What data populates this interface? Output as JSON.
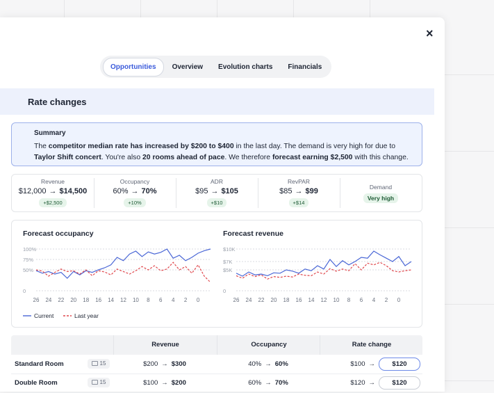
{
  "close": "×",
  "arrow": "→",
  "tabs": [
    {
      "label": "Opportunities",
      "active": true
    },
    {
      "label": "Overview",
      "active": false
    },
    {
      "label": "Evolution charts",
      "active": false
    },
    {
      "label": "Financials",
      "active": false
    }
  ],
  "section": {
    "title": "Rate changes"
  },
  "summary": {
    "title": "Summary",
    "segments": [
      {
        "text": "The ",
        "bold": false
      },
      {
        "text": "competitor median rate has increased by $200 to $400",
        "bold": true
      },
      {
        "text": " in the last day. The demand is very high for due to ",
        "bold": false
      },
      {
        "text": "Taylor Shift concert",
        "bold": true
      },
      {
        "text": ". You're also ",
        "bold": false
      },
      {
        "text": "20 rooms ahead of pace",
        "bold": true
      },
      {
        "text": ". We therefore ",
        "bold": false
      },
      {
        "text": "forecast earning $2,500",
        "bold": true
      },
      {
        "text": " with this change.",
        "bold": false
      }
    ]
  },
  "metrics": [
    {
      "label": "Revenue",
      "from": "$12,000",
      "to": "$14,500",
      "delta": "+$2,500"
    },
    {
      "label": "Occupancy",
      "from": "60%",
      "to": "70%",
      "delta": "+10%"
    },
    {
      "label": "ADR",
      "from": "$95",
      "to": "$105",
      "delta": "+$10"
    },
    {
      "label": "RevPAR",
      "from": "$85",
      "to": "$99",
      "delta": "+$14"
    }
  ],
  "demand": {
    "label": "Demand",
    "value": "Very high"
  },
  "charts": [
    {
      "type": "line",
      "title": "Forecast occupancy",
      "x": [
        26,
        25,
        24,
        23,
        22,
        21,
        20,
        19,
        18,
        17,
        16,
        15,
        14,
        13,
        12,
        11,
        10,
        9,
        8,
        7,
        6,
        5,
        4,
        3,
        2,
        1,
        0,
        -1,
        -2
      ],
      "xlim": [
        26,
        -2
      ],
      "xticks": [
        26,
        24,
        22,
        20,
        18,
        16,
        14,
        12,
        10,
        8,
        6,
        4,
        2,
        0
      ],
      "ylim": [
        0,
        100
      ],
      "yticks": [
        {
          "value": 0,
          "label": "0"
        },
        {
          "value": 50,
          "label": "50%"
        },
        {
          "value": 75,
          "label": "75%"
        },
        {
          "value": 100,
          "label": "100%"
        }
      ],
      "grid": true,
      "series": [
        {
          "name": "Current",
          "color": "#4a67d6",
          "dashed": false,
          "values": [
            48,
            42,
            46,
            40,
            44,
            30,
            46,
            38,
            48,
            44,
            50,
            55,
            62,
            80,
            72,
            88,
            95,
            82,
            93,
            88,
            92,
            100,
            78,
            85,
            72,
            80,
            90,
            96,
            100
          ]
        },
        {
          "name": "Last year",
          "color": "#e0474c",
          "dashed": true,
          "values": [
            50,
            47,
            35,
            44,
            52,
            46,
            48,
            40,
            50,
            36,
            48,
            45,
            38,
            52,
            46,
            40,
            48,
            58,
            50,
            60,
            48,
            52,
            68,
            50,
            58,
            42,
            62,
            35,
            20
          ]
        }
      ]
    },
    {
      "type": "line",
      "title": "Forecast revenue",
      "x": [
        26,
        25,
        24,
        23,
        22,
        21,
        20,
        19,
        18,
        17,
        16,
        15,
        14,
        13,
        12,
        11,
        10,
        9,
        8,
        7,
        6,
        5,
        4,
        3,
        2,
        1,
        0,
        -1,
        -2
      ],
      "xlim": [
        26,
        -2
      ],
      "xticks": [
        26,
        24,
        22,
        20,
        18,
        16,
        14,
        12,
        10,
        8,
        6,
        4,
        2,
        0
      ],
      "ylim": [
        0,
        10000
      ],
      "yticks": [
        {
          "value": 0,
          "label": "0"
        },
        {
          "value": 5000,
          "label": "$5K"
        },
        {
          "value": 7000,
          "label": "$7K"
        },
        {
          "value": 10000,
          "label": "$10K"
        }
      ],
      "grid": true,
      "series": [
        {
          "name": "Current",
          "color": "#4a67d6",
          "dashed": false,
          "values": [
            4200,
            3500,
            4500,
            3800,
            4000,
            3600,
            4300,
            4200,
            5000,
            4700,
            4200,
            5200,
            4800,
            6000,
            5200,
            7500,
            5800,
            7200,
            6200,
            7000,
            8000,
            7800,
            9500,
            8600,
            7800,
            7000,
            8200,
            6000,
            7000
          ]
        },
        {
          "name": "Last year",
          "color": "#e0474c",
          "dashed": true,
          "values": [
            3600,
            3000,
            4000,
            3400,
            3800,
            2800,
            3400,
            3200,
            3500,
            3300,
            4000,
            3700,
            3600,
            4500,
            4000,
            5300,
            4700,
            5200,
            4800,
            6500,
            5000,
            6600,
            6200,
            6800,
            6000,
            4800,
            4500,
            4800,
            5000
          ]
        }
      ]
    }
  ],
  "table": {
    "headers": [
      "Revenue",
      "Occupancy",
      "Rate change"
    ],
    "rows": [
      {
        "name": "Standard Room",
        "rooms": "15",
        "revenue": {
          "from": "$200",
          "to": "$300"
        },
        "occupancy": {
          "from": "40%",
          "to": "60%"
        },
        "rate": {
          "from": "$100",
          "to": "$120"
        },
        "focused": true
      },
      {
        "name": "Double Room",
        "rooms": "15",
        "revenue": {
          "from": "$100",
          "to": "$200"
        },
        "occupancy": {
          "from": "60%",
          "to": "70%"
        },
        "rate": {
          "from": "$120",
          "to": "$120"
        },
        "focused": false
      }
    ]
  }
}
